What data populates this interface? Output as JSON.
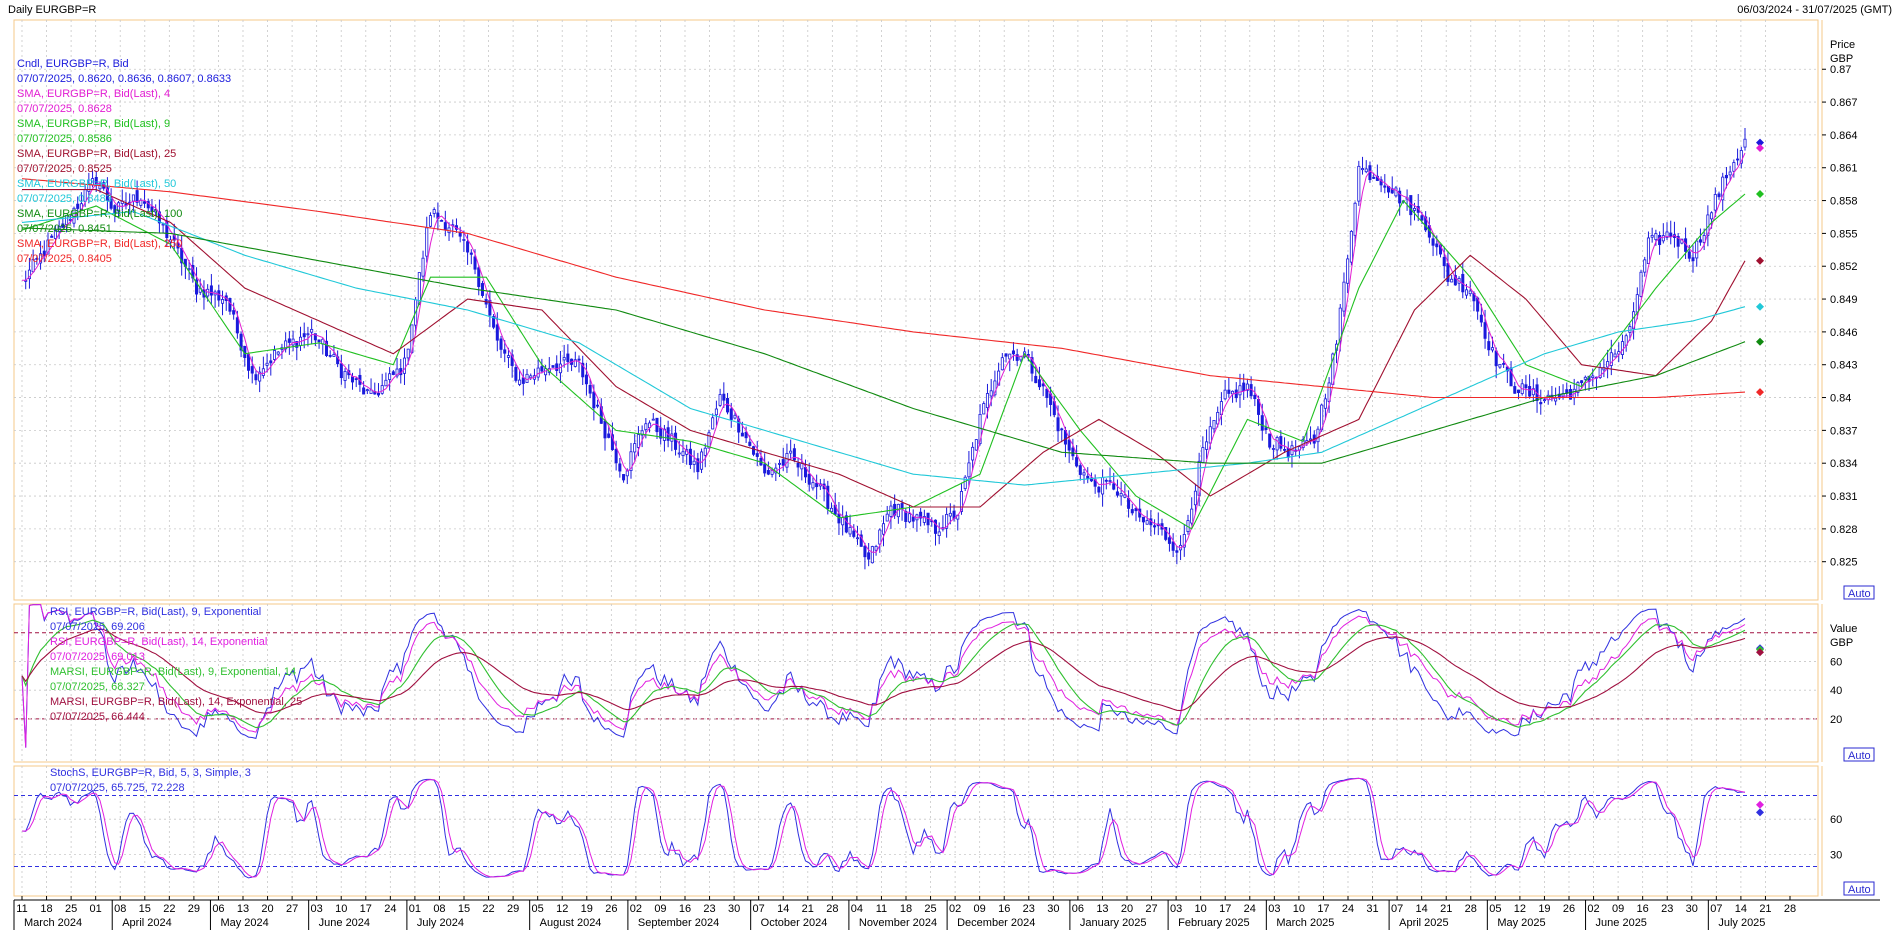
{
  "header": {
    "title": "Daily EURGBP=R",
    "date_range": "06/03/2024 - 31/07/2025 (GMT)"
  },
  "colors": {
    "background": "#ffffff",
    "frame": "#f5c88a",
    "grid": "#c8c8c8",
    "candle": "#1a1adc",
    "sma4": "#e21ed2",
    "sma9": "#20c020",
    "sma25": "#a01030",
    "sma50": "#20c8d8",
    "sma100": "#108a10",
    "sma250": "#f02828",
    "rsi9": "#3030e0",
    "rsi14": "#e020e0",
    "marsi9": "#30c030",
    "marsi14": "#a01040",
    "stoch_k": "#3030e0",
    "stoch_d": "#e020e0"
  },
  "chart_data": [
    {
      "type": "line",
      "panel": "price",
      "chart_kind": "candlestick",
      "axis_title": "Price",
      "axis_unit": "GBP",
      "y_ticks": [
        "0.87",
        "0.867",
        "0.864",
        "0.861",
        "0.858",
        "0.855",
        "0.852",
        "0.849",
        "0.846",
        "0.843",
        "0.84",
        "0.837",
        "0.834",
        "0.831",
        "0.828",
        "0.825"
      ],
      "ylim": [
        0.8215,
        0.8745
      ],
      "auto_label": "Auto",
      "grid": true,
      "legend": [
        {
          "text": "Cndl, EURGBP=R, Bid",
          "value_text": "07/07/2025, 0.8620, 0.8636, 0.8607, 0.8633",
          "color_key": "candle"
        },
        {
          "text": "SMA, EURGBP=R, Bid(Last), 4",
          "value_text": "07/07/2025, 0.8628",
          "color_key": "sma4"
        },
        {
          "text": "SMA, EURGBP=R, Bid(Last), 9",
          "value_text": "07/07/2025, 0.8586",
          "color_key": "sma9"
        },
        {
          "text": "SMA, EURGBP=R, Bid(Last), 25",
          "value_text": "07/07/2025, 0.8525",
          "color_key": "sma25"
        },
        {
          "text": "SMA, EURGBP=R, Bid(Last), 50",
          "value_text": "07/07/2025, 0.8483",
          "color_key": "sma50"
        },
        {
          "text": "SMA, EURGBP=R, Bid(Last), 100",
          "value_text": "07/07/2025, 0.8451",
          "color_key": "sma100"
        },
        {
          "text": "SMA, EURGBP=R, Bid(Last), 250",
          "value_text": "07/07/2025, 0.8405",
          "color_key": "sma250"
        }
      ],
      "close_anchors": [
        [
          0,
          0.8505
        ],
        [
          10,
          0.8553
        ],
        [
          20,
          0.86
        ],
        [
          25,
          0.857
        ],
        [
          32,
          0.8585
        ],
        [
          40,
          0.8545
        ],
        [
          47,
          0.85
        ],
        [
          55,
          0.849
        ],
        [
          62,
          0.842
        ],
        [
          70,
          0.8445
        ],
        [
          78,
          0.846
        ],
        [
          86,
          0.8425
        ],
        [
          94,
          0.84
        ],
        [
          103,
          0.843
        ],
        [
          110,
          0.857
        ],
        [
          116,
          0.8555
        ],
        [
          122,
          0.852
        ],
        [
          128,
          0.845
        ],
        [
          134,
          0.8415
        ],
        [
          142,
          0.843
        ],
        [
          150,
          0.843
        ],
        [
          157,
          0.837
        ],
        [
          162,
          0.833
        ],
        [
          168,
          0.838
        ],
        [
          175,
          0.836
        ],
        [
          182,
          0.8335
        ],
        [
          188,
          0.84
        ],
        [
          194,
          0.837
        ],
        [
          200,
          0.833
        ],
        [
          207,
          0.8345
        ],
        [
          214,
          0.832
        ],
        [
          222,
          0.828
        ],
        [
          228,
          0.825
        ],
        [
          234,
          0.83
        ],
        [
          240,
          0.829
        ],
        [
          246,
          0.828
        ],
        [
          252,
          0.8295
        ],
        [
          258,
          0.838
        ],
        [
          264,
          0.844
        ],
        [
          270,
          0.844
        ],
        [
          276,
          0.84
        ],
        [
          282,
          0.835
        ],
        [
          288,
          0.832
        ],
        [
          294,
          0.832
        ],
        [
          300,
          0.829
        ],
        [
          306,
          0.828
        ],
        [
          312,
          0.826
        ],
        [
          318,
          0.835
        ],
        [
          324,
          0.84
        ],
        [
          330,
          0.841
        ],
        [
          336,
          0.836
        ],
        [
          342,
          0.835
        ],
        [
          348,
          0.836
        ],
        [
          354,
          0.845
        ],
        [
          360,
          0.861
        ],
        [
          366,
          0.86
        ],
        [
          372,
          0.858
        ],
        [
          378,
          0.856
        ],
        [
          384,
          0.851
        ],
        [
          390,
          0.85
        ],
        [
          396,
          0.844
        ],
        [
          402,
          0.841
        ],
        [
          408,
          0.84
        ],
        [
          414,
          0.84
        ],
        [
          420,
          0.841
        ],
        [
          426,
          0.843
        ],
        [
          432,
          0.845
        ],
        [
          438,
          0.854
        ],
        [
          444,
          0.855
        ],
        [
          450,
          0.853
        ],
        [
          456,
          0.858
        ],
        [
          460,
          0.861
        ],
        [
          464,
          0.8633
        ]
      ],
      "sma_anchors": {
        "sma9": [
          [
            0,
            0.8553
          ],
          [
            20,
            0.8575
          ],
          [
            40,
            0.854
          ],
          [
            60,
            0.844
          ],
          [
            80,
            0.845
          ],
          [
            100,
            0.843
          ],
          [
            110,
            0.851
          ],
          [
            125,
            0.851
          ],
          [
            140,
            0.843
          ],
          [
            160,
            0.837
          ],
          [
            180,
            0.836
          ],
          [
            200,
            0.834
          ],
          [
            220,
            0.829
          ],
          [
            240,
            0.83
          ],
          [
            258,
            0.833
          ],
          [
            270,
            0.844
          ],
          [
            285,
            0.837
          ],
          [
            300,
            0.831
          ],
          [
            315,
            0.828
          ],
          [
            330,
            0.838
          ],
          [
            345,
            0.836
          ],
          [
            360,
            0.85
          ],
          [
            372,
            0.858
          ],
          [
            390,
            0.851
          ],
          [
            405,
            0.843
          ],
          [
            420,
            0.841
          ],
          [
            440,
            0.85
          ],
          [
            455,
            0.856
          ],
          [
            464,
            0.8586
          ]
        ],
        "sma25": [
          [
            0,
            0.859
          ],
          [
            20,
            0.859
          ],
          [
            40,
            0.856
          ],
          [
            60,
            0.85
          ],
          [
            80,
            0.847
          ],
          [
            100,
            0.844
          ],
          [
            120,
            0.849
          ],
          [
            140,
            0.848
          ],
          [
            160,
            0.841
          ],
          [
            180,
            0.837
          ],
          [
            200,
            0.835
          ],
          [
            220,
            0.833
          ],
          [
            240,
            0.83
          ],
          [
            258,
            0.83
          ],
          [
            275,
            0.835
          ],
          [
            290,
            0.838
          ],
          [
            305,
            0.835
          ],
          [
            320,
            0.831
          ],
          [
            340,
            0.835
          ],
          [
            360,
            0.838
          ],
          [
            375,
            0.848
          ],
          [
            390,
            0.853
          ],
          [
            405,
            0.849
          ],
          [
            420,
            0.843
          ],
          [
            440,
            0.842
          ],
          [
            455,
            0.847
          ],
          [
            464,
            0.8525
          ]
        ],
        "sma50": [
          [
            0,
            0.856
          ],
          [
            30,
            0.857
          ],
          [
            60,
            0.853
          ],
          [
            90,
            0.85
          ],
          [
            120,
            0.848
          ],
          [
            150,
            0.845
          ],
          [
            180,
            0.839
          ],
          [
            210,
            0.836
          ],
          [
            240,
            0.833
          ],
          [
            270,
            0.832
          ],
          [
            300,
            0.833
          ],
          [
            330,
            0.834
          ],
          [
            350,
            0.835
          ],
          [
            370,
            0.838
          ],
          [
            390,
            0.841
          ],
          [
            410,
            0.844
          ],
          [
            430,
            0.846
          ],
          [
            450,
            0.847
          ],
          [
            464,
            0.8483
          ]
        ],
        "sma100": [
          [
            0,
            0.8555
          ],
          [
            40,
            0.855
          ],
          [
            80,
            0.8525
          ],
          [
            120,
            0.85
          ],
          [
            160,
            0.848
          ],
          [
            200,
            0.844
          ],
          [
            240,
            0.839
          ],
          [
            280,
            0.835
          ],
          [
            320,
            0.834
          ],
          [
            350,
            0.834
          ],
          [
            380,
            0.837
          ],
          [
            410,
            0.84
          ],
          [
            440,
            0.842
          ],
          [
            464,
            0.8451
          ]
        ],
        "sma250": [
          [
            0,
            0.86
          ],
          [
            40,
            0.8588
          ],
          [
            80,
            0.857
          ],
          [
            120,
            0.855
          ],
          [
            160,
            0.851
          ],
          [
            200,
            0.848
          ],
          [
            240,
            0.846
          ],
          [
            280,
            0.8445
          ],
          [
            320,
            0.842
          ],
          [
            350,
            0.841
          ],
          [
            380,
            0.84
          ],
          [
            420,
            0.84
          ],
          [
            440,
            0.84
          ],
          [
            464,
            0.8405
          ]
        ]
      },
      "right_markers": [
        {
          "value": 0.8633,
          "color_key": "candle"
        },
        {
          "value": 0.8628,
          "color_key": "sma4"
        },
        {
          "value": 0.8586,
          "color_key": "sma9"
        },
        {
          "value": 0.8525,
          "color_key": "sma25"
        },
        {
          "value": 0.8483,
          "color_key": "sma50"
        },
        {
          "value": 0.8451,
          "color_key": "sma100"
        },
        {
          "value": 0.8405,
          "color_key": "sma250"
        }
      ]
    },
    {
      "type": "line",
      "panel": "rsi",
      "axis_title": "Value",
      "axis_unit": "GBP",
      "y_ticks": [
        "60",
        "40",
        "20"
      ],
      "ylim": [
        -10,
        100
      ],
      "ref_lines": [
        80,
        20
      ],
      "auto_label": "Auto",
      "legend": [
        {
          "text": "RSI, EURGBP=R, Bid(Last), 9, Exponential",
          "value_text": "07/07/2025, 69.206",
          "color_key": "rsi9"
        },
        {
          "text": "RSI, EURGBP=R, Bid(Last), 14, Exponential",
          "value_text": "07/07/2025, 69.013",
          "color_key": "rsi14"
        },
        {
          "text": "MARSI, EURGBP=R, Bid(Last), 9, Exponential, 14",
          "value_text": "07/07/2025, 68.327",
          "color_key": "marsi9"
        },
        {
          "text": "MARSI, EURGBP=R, Bid(Last), 14, Exponential, 25",
          "value_text": "07/07/2025, 66.444",
          "color_key": "marsi14"
        }
      ],
      "right_markers": [
        {
          "value": 69.206,
          "color_key": "rsi9"
        },
        {
          "value": 68.327,
          "color_key": "marsi9"
        },
        {
          "value": 66.444,
          "color_key": "marsi14"
        }
      ]
    },
    {
      "type": "line",
      "panel": "stoch",
      "y_ticks": [
        "60",
        "30"
      ],
      "ylim": [
        -5,
        105
      ],
      "ref_lines": [
        80,
        20
      ],
      "auto_label": "Auto",
      "legend": [
        {
          "text": "StochS, EURGBP=R, Bid, 5, 3, Simple, 3",
          "value_text": "07/07/2025, 65.725, 72.228",
          "color_key": "stoch_k"
        }
      ],
      "right_markers": [
        {
          "value": 65.725,
          "color_key": "stoch_k"
        },
        {
          "value": 72.228,
          "color_key": "stoch_d"
        }
      ]
    }
  ],
  "x_axis": {
    "day_ticks": [
      "11",
      "18",
      "25",
      "01",
      "08",
      "15",
      "22",
      "29",
      "06",
      "13",
      "20",
      "27",
      "03",
      "10",
      "17",
      "24",
      "01",
      "08",
      "15",
      "22",
      "29",
      "05",
      "12",
      "19",
      "26",
      "02",
      "09",
      "16",
      "23",
      "30",
      "07",
      "14",
      "21",
      "28",
      "04",
      "11",
      "18",
      "25",
      "02",
      "09",
      "16",
      "23",
      "30",
      "06",
      "13",
      "20",
      "27",
      "03",
      "10",
      "17",
      "24",
      "03",
      "10",
      "17",
      "24",
      "31",
      "07",
      "14",
      "21",
      "28",
      "05",
      "12",
      "19",
      "26",
      "02",
      "09",
      "16",
      "23",
      "30",
      "07",
      "14",
      "21",
      "28"
    ],
    "month_labels": [
      {
        "label": "March 2024",
        "week_index": 0
      },
      {
        "label": "April 2024",
        "week_index": 4
      },
      {
        "label": "May 2024",
        "week_index": 8
      },
      {
        "label": "June 2024",
        "week_index": 12
      },
      {
        "label": "July 2024",
        "week_index": 16
      },
      {
        "label": "August 2024",
        "week_index": 21
      },
      {
        "label": "September 2024",
        "week_index": 25
      },
      {
        "label": "October 2024",
        "week_index": 30
      },
      {
        "label": "November 2024",
        "week_index": 34
      },
      {
        "label": "December 2024",
        "week_index": 38
      },
      {
        "label": "January 2025",
        "week_index": 43
      },
      {
        "label": "February 2025",
        "week_index": 47
      },
      {
        "label": "March 2025",
        "week_index": 51
      },
      {
        "label": "April 2025",
        "week_index": 56
      },
      {
        "label": "May 2025",
        "week_index": 60
      },
      {
        "label": "June 2025",
        "week_index": 64
      },
      {
        "label": "July 2025",
        "week_index": 69
      }
    ]
  }
}
